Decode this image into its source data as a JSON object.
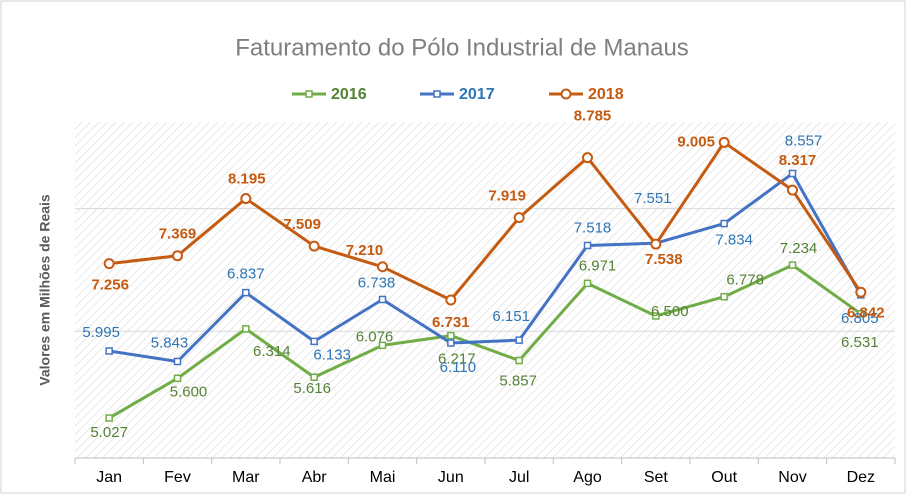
{
  "chart_data": {
    "type": "line",
    "title": "Faturamento do Pólo Industrial de Manaus",
    "ylabel": "Valores em Milhões de Reais",
    "categories": [
      "Jan",
      "Fev",
      "Mar",
      "Abr",
      "Mai",
      "Jun",
      "Jul",
      "Ago",
      "Set",
      "Out",
      "Nov",
      "Dez"
    ],
    "series": [
      {
        "name": "2016",
        "color": "#70ad47",
        "label_color": "#548235",
        "marker": "square",
        "values": [
          5.027,
          5.6,
          6.314,
          5.616,
          6.076,
          6.217,
          5.857,
          6.971,
          6.5,
          6.778,
          7.234,
          6.531
        ],
        "value_labels": [
          "5.027",
          "5.600",
          "6.314",
          "5.616",
          "6.076",
          "6.217",
          "5.857",
          "6.971",
          "6.500",
          "6.778",
          "7.234",
          "6.531"
        ]
      },
      {
        "name": "2017",
        "color": "#4472c4",
        "label_color": "#2e75b6",
        "marker": "square",
        "values": [
          5.995,
          5.843,
          6.837,
          6.133,
          6.738,
          6.11,
          6.151,
          7.518,
          7.551,
          7.834,
          8.557,
          6.805
        ],
        "value_labels": [
          "5.995",
          "5.843",
          "6.837",
          "6.133",
          "6.738",
          "6.110",
          "6.151",
          "7.518",
          "7.551",
          "7.834",
          "8.557",
          "6.805"
        ]
      },
      {
        "name": "2018",
        "color": "#c55a11",
        "label_color": "#c55a11",
        "marker": "circle",
        "values": [
          7.256,
          7.369,
          8.195,
          7.509,
          7.21,
          6.731,
          7.919,
          8.785,
          7.538,
          9.005,
          8.317,
          6.842
        ],
        "value_labels": [
          "7.256",
          "7.369",
          "8.195",
          "7.509",
          "7.210",
          "6.731",
          "7.919",
          "8.785",
          "7.538",
          "9.005",
          "8.317",
          "6.842"
        ]
      }
    ],
    "ylim": [
      4.45,
      9.3
    ],
    "yticks": [
      6.28,
      8.05
    ],
    "grid": true,
    "legend": "top"
  }
}
